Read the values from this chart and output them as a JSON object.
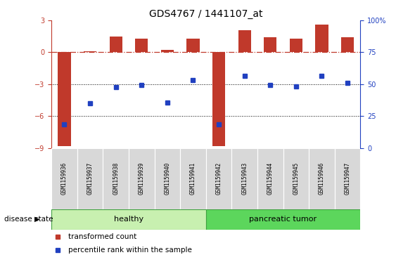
{
  "title": "GDS4767 / 1441107_at",
  "samples": [
    "GSM1159936",
    "GSM1159937",
    "GSM1159938",
    "GSM1159939",
    "GSM1159940",
    "GSM1159941",
    "GSM1159942",
    "GSM1159943",
    "GSM1159944",
    "GSM1159945",
    "GSM1159946",
    "GSM1159947"
  ],
  "bar_values": [
    -8.8,
    0.1,
    1.5,
    1.3,
    0.2,
    1.3,
    -8.85,
    2.1,
    1.4,
    1.3,
    2.6,
    1.4
  ],
  "dot_values": [
    -6.8,
    -4.8,
    -3.3,
    -3.1,
    -4.7,
    -2.6,
    -6.8,
    -2.2,
    -3.1,
    -3.2,
    -2.2,
    -2.9
  ],
  "bar_color": "#c0392b",
  "dot_color": "#2040c0",
  "healthy_count": 6,
  "pancreatic_count": 6,
  "ylim_left": [
    -9,
    3
  ],
  "ylim_right": [
    0,
    100
  ],
  "yticks_left": [
    -9,
    -6,
    -3,
    0,
    3
  ],
  "yticks_right": [
    0,
    25,
    50,
    75,
    100
  ],
  "ytick_labels_right": [
    "0",
    "25",
    "50",
    "75",
    "100%"
  ],
  "hline_y": 0,
  "dotted_lines": [
    -3,
    -6
  ],
  "healthy_color": "#c8f0b0",
  "pancreatic_color": "#5cd65c",
  "label_healthy": "healthy",
  "label_pancreatic": "pancreatic tumor",
  "legend_red": "transformed count",
  "legend_blue": "percentile rank within the sample",
  "disease_state_label": "disease state",
  "gray_box_color": "#d8d8d8"
}
